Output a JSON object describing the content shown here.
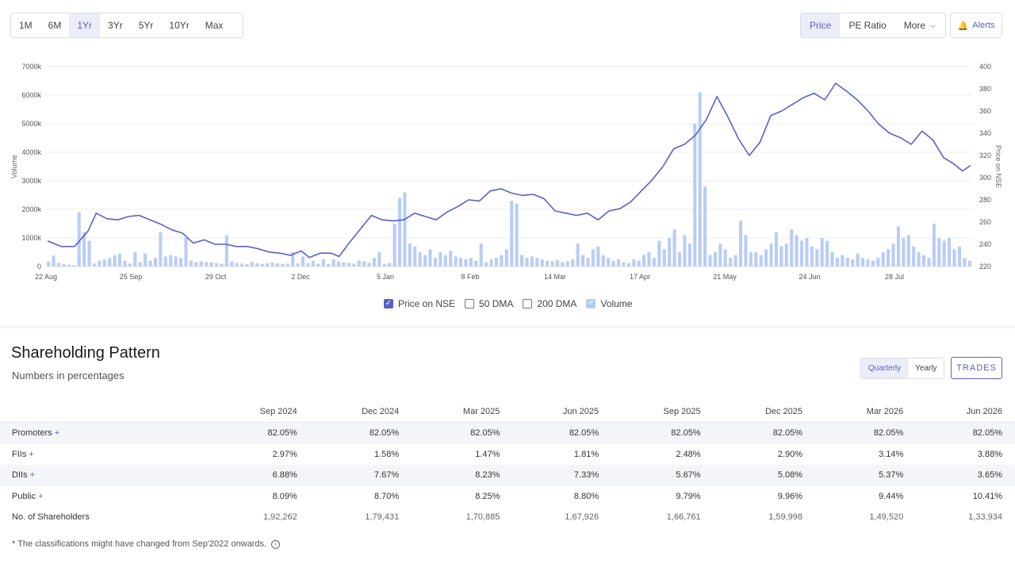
{
  "range_buttons": [
    "1M",
    "6M",
    "1Yr",
    "3Yr",
    "5Yr",
    "10Yr",
    "Max"
  ],
  "range_active": "1Yr",
  "metric_buttons": {
    "price": "Price",
    "pe": "PE Ratio",
    "more": "More"
  },
  "alerts_label": "Alerts",
  "legend": {
    "price": "Price on NSE",
    "dma50": "50 DMA",
    "dma200": "200 DMA",
    "volume": "Volume"
  },
  "chart_data": {
    "type": "line",
    "ylabel_left": "Volume",
    "ylabel_right": "Price on NSE",
    "y_left_ticks": [
      "0",
      "1000k",
      "2000k",
      "3000k",
      "4000k",
      "5000k",
      "6000k",
      "7000k"
    ],
    "y_left_range": [
      0,
      7000
    ],
    "y_right_ticks": [
      "220",
      "240",
      "260",
      "280",
      "300",
      "320",
      "340",
      "360",
      "380",
      "400"
    ],
    "y_right_range": [
      220,
      400
    ],
    "x_ticks": [
      "22 Aug",
      "25 Sep",
      "29 Oct",
      "2 Dec",
      "5 Jan",
      "8 Feb",
      "14 Mar",
      "17 Apr",
      "21 May",
      "24 Jun",
      "28 Jul"
    ],
    "price_series": [
      [
        0,
        243
      ],
      [
        5,
        238
      ],
      [
        10,
        238
      ],
      [
        15,
        252
      ],
      [
        18,
        268
      ],
      [
        22,
        263
      ],
      [
        26,
        262
      ],
      [
        30,
        265
      ],
      [
        34,
        266
      ],
      [
        38,
        262
      ],
      [
        42,
        258
      ],
      [
        46,
        253
      ],
      [
        50,
        250
      ],
      [
        54,
        241
      ],
      [
        58,
        244
      ],
      [
        62,
        240
      ],
      [
        66,
        240
      ],
      [
        70,
        238
      ],
      [
        74,
        238
      ],
      [
        78,
        236
      ],
      [
        82,
        233
      ],
      [
        86,
        232
      ],
      [
        90,
        230
      ],
      [
        94,
        234
      ],
      [
        97,
        228
      ],
      [
        101,
        232
      ],
      [
        105,
        232
      ],
      [
        108,
        229
      ],
      [
        112,
        242
      ],
      [
        116,
        254
      ],
      [
        120,
        266
      ],
      [
        124,
        262
      ],
      [
        128,
        261
      ],
      [
        132,
        262
      ],
      [
        136,
        268
      ],
      [
        140,
        265
      ],
      [
        144,
        262
      ],
      [
        148,
        269
      ],
      [
        152,
        274
      ],
      [
        156,
        280
      ],
      [
        160,
        279
      ],
      [
        164,
        288
      ],
      [
        168,
        290
      ],
      [
        172,
        286
      ],
      [
        176,
        284
      ],
      [
        180,
        285
      ],
      [
        184,
        281
      ],
      [
        188,
        270
      ],
      [
        192,
        268
      ],
      [
        196,
        266
      ],
      [
        200,
        268
      ],
      [
        204,
        262
      ],
      [
        208,
        270
      ],
      [
        212,
        272
      ],
      [
        216,
        278
      ],
      [
        220,
        288
      ],
      [
        224,
        298
      ],
      [
        228,
        310
      ],
      [
        232,
        326
      ],
      [
        236,
        330
      ],
      [
        240,
        338
      ],
      [
        244,
        352
      ],
      [
        248,
        373
      ],
      [
        252,
        355
      ],
      [
        256,
        335
      ],
      [
        260,
        320
      ],
      [
        264,
        332
      ],
      [
        268,
        356
      ],
      [
        272,
        360
      ],
      [
        276,
        366
      ],
      [
        280,
        372
      ],
      [
        284,
        376
      ],
      [
        288,
        370
      ],
      [
        292,
        385
      ],
      [
        296,
        378
      ],
      [
        300,
        370
      ],
      [
        304,
        360
      ],
      [
        308,
        348
      ],
      [
        312,
        340
      ],
      [
        316,
        336
      ],
      [
        320,
        330
      ],
      [
        324,
        342
      ],
      [
        328,
        334
      ],
      [
        332,
        318
      ],
      [
        336,
        312
      ],
      [
        339,
        306
      ],
      [
        342,
        311
      ]
    ],
    "volume_series": [
      180,
      380,
      120,
      80,
      60,
      50,
      1900,
      1200,
      900,
      100,
      200,
      250,
      300,
      400,
      450,
      200,
      100,
      500,
      150,
      450,
      200,
      300,
      1200,
      350,
      400,
      350,
      300,
      1000,
      200,
      150,
      180,
      160,
      150,
      120,
      100,
      1100,
      180,
      120,
      100,
      80,
      160,
      120,
      90,
      110,
      140,
      110,
      90,
      100,
      500,
      110,
      350,
      120,
      200,
      100,
      250,
      90,
      250,
      180,
      150,
      130,
      100,
      210,
      180,
      130,
      300,
      500,
      80,
      120,
      1500,
      2400,
      2600,
      800,
      700,
      500,
      400,
      600,
      300,
      500,
      400,
      550,
      350,
      300,
      250,
      300,
      200,
      800,
      150,
      250,
      300,
      400,
      600,
      2300,
      2200,
      400,
      300,
      350,
      300,
      250,
      200,
      180,
      220,
      150,
      180,
      250,
      800,
      400,
      300,
      600,
      700,
      400,
      300,
      200,
      250,
      150,
      120,
      250,
      200,
      400,
      500,
      300,
      900,
      600,
      1000,
      1300,
      500,
      1100,
      800,
      5000,
      6100,
      2800,
      400,
      500,
      800,
      600,
      300,
      400,
      1600,
      1100,
      500,
      500,
      400,
      600,
      800,
      1200,
      700,
      800,
      1300,
      1100,
      900,
      1000,
      700,
      600,
      1000,
      900,
      500,
      300,
      400,
      300,
      250,
      450,
      300,
      250,
      200,
      300,
      500,
      600,
      800,
      1400,
      1000,
      1100,
      700,
      500,
      400,
      300,
      1500,
      1000,
      900,
      1000,
      600,
      700,
      300,
      200
    ]
  },
  "shareholding": {
    "title": "Shareholding Pattern",
    "subtitle": "Numbers in percentages",
    "period_buttons": {
      "quarterly": "Quarterly",
      "yearly": "Yearly"
    },
    "trades_label": "TRADES",
    "columns": [
      "Sep 2024",
      "Dec 2024",
      "Mar 2025",
      "Jun 2025",
      "Sep 2025",
      "Dec 2025",
      "Mar 2026",
      "Jun 2026"
    ],
    "rows": [
      {
        "label": "Promoters",
        "values": [
          "82.05%",
          "82.05%",
          "82.05%",
          "82.05%",
          "82.05%",
          "82.05%",
          "82.05%",
          "82.05%"
        ],
        "expandable": true
      },
      {
        "label": "FIIs",
        "values": [
          "2.97%",
          "1.58%",
          "1.47%",
          "1.81%",
          "2.48%",
          "2.90%",
          "3.14%",
          "3.88%"
        ],
        "expandable": true
      },
      {
        "label": "DIIs",
        "values": [
          "6.88%",
          "7.67%",
          "8.23%",
          "7.33%",
          "5.67%",
          "5.08%",
          "5.37%",
          "3.65%"
        ],
        "expandable": true
      },
      {
        "label": "Public",
        "values": [
          "8.09%",
          "8.70%",
          "8.25%",
          "8.80%",
          "9.79%",
          "9.96%",
          "9.44%",
          "10.41%"
        ],
        "expandable": true
      },
      {
        "label": "No. of Shareholders",
        "values": [
          "1,92,262",
          "1,79,431",
          "1,70,885",
          "1,67,926",
          "1,66,761",
          "1,59,998",
          "1,49,520",
          "1,33,934"
        ],
        "expandable": false
      }
    ],
    "plus_symbol": "+",
    "footnote": "* The classifications might have changed from Sep'2022 onwards.",
    "info_symbol": "i"
  }
}
